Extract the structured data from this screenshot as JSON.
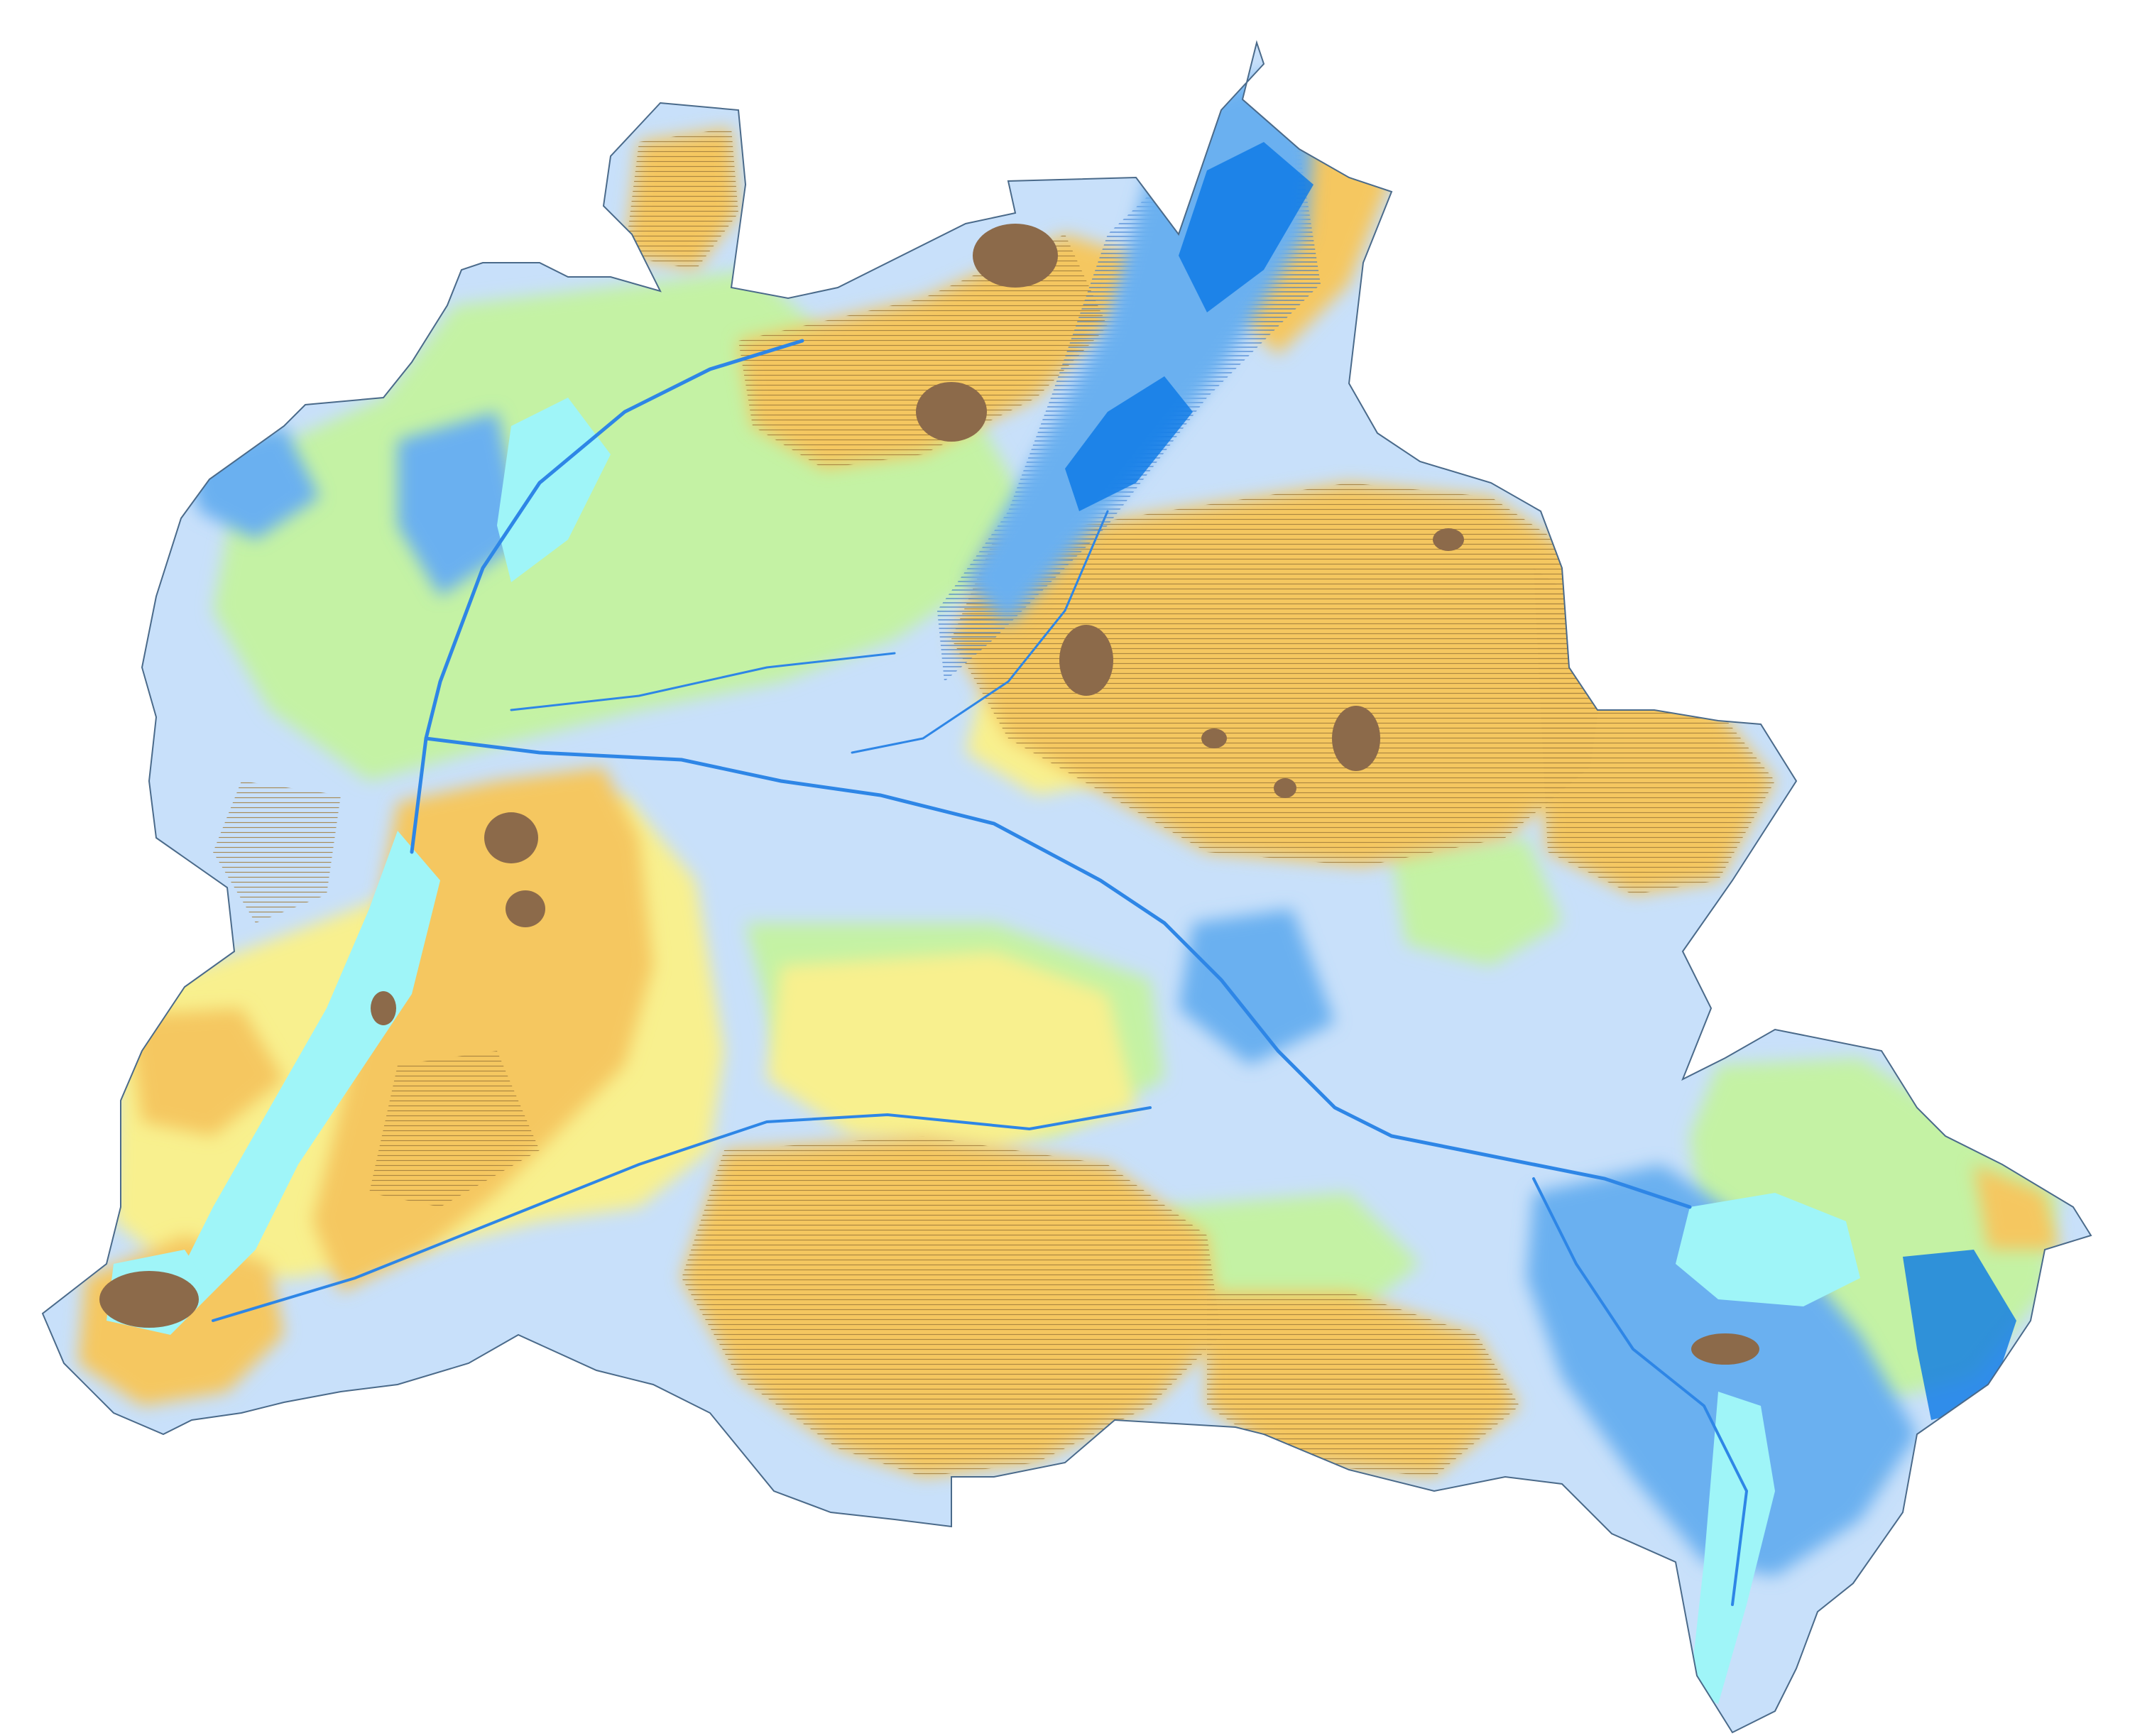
{
  "map": {
    "palette": {
      "very_low": "#0a78e6",
      "low": "#6ab0f0",
      "mid_low": "#c8e0fa",
      "water": "#9ff5f8",
      "mid": "#c4f2a4",
      "mid_high": "#f8f08e",
      "high": "#f5c760",
      "higher": "#dcb071",
      "highest": "#8c6a4a",
      "hatch": "#a07c3c",
      "river": "#2e86e6",
      "outline": "#4a6a8a"
    },
    "legend": [],
    "title": ""
  }
}
